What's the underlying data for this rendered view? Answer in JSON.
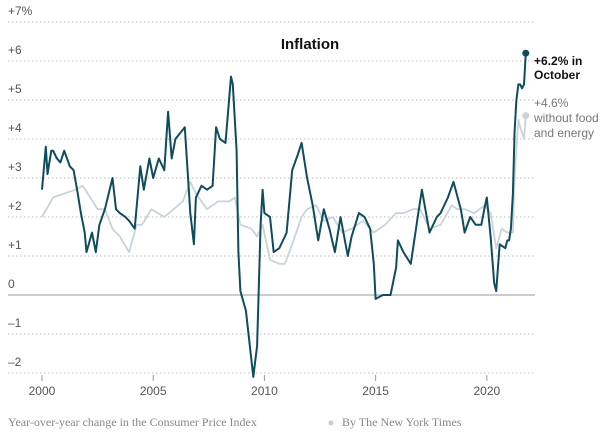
{
  "chart_data": {
    "type": "line",
    "title": "Inflation",
    "xlim": [
      1999.7,
      2022.3
    ],
    "xticks": [
      2000,
      2005,
      2010,
      2015,
      2020
    ],
    "ylim": [
      -2,
      7
    ],
    "yticks": [
      {
        "value": 7,
        "label": "+7%"
      },
      {
        "value": 6,
        "label": "+6"
      },
      {
        "value": 5,
        "label": "+5"
      },
      {
        "value": 4,
        "label": "+4"
      },
      {
        "value": 3,
        "label": "+3"
      },
      {
        "value": 2,
        "label": "+2"
      },
      {
        "value": 1,
        "label": "+1"
      },
      0,
      {
        "value": -1,
        "label": "–1"
      },
      {
        "value": -2,
        "label": "–2"
      }
    ],
    "grid": true,
    "series": [
      {
        "name": "Consumer Price Index",
        "color": "#0f4c5c",
        "x": [
          2000.0,
          2000.17,
          2000.25,
          2000.42,
          2000.5,
          2000.67,
          2000.83,
          2001.0,
          2001.25,
          2001.42,
          2001.58,
          2001.75,
          2001.92,
          2002.0,
          2002.25,
          2002.42,
          2002.58,
          2002.83,
          2003.0,
          2003.17,
          2003.33,
          2003.5,
          2003.75,
          2003.92,
          2004.17,
          2004.42,
          2004.58,
          2004.83,
          2005.0,
          2005.25,
          2005.5,
          2005.67,
          2005.83,
          2006.0,
          2006.42,
          2006.67,
          2006.83,
          2006.92,
          2007.17,
          2007.42,
          2007.67,
          2007.83,
          2008.0,
          2008.25,
          2008.5,
          2008.58,
          2008.75,
          2008.83,
          2008.92,
          2009.17,
          2009.5,
          2009.67,
          2009.83,
          2009.92,
          2010.0,
          2010.25,
          2010.42,
          2010.67,
          2010.92,
          2011.0,
          2011.25,
          2011.5,
          2011.67,
          2011.92,
          2012.17,
          2012.42,
          2012.67,
          2012.92,
          2013.17,
          2013.42,
          2013.75,
          2013.92,
          2014.25,
          2014.5,
          2014.75,
          2014.92,
          2015.0,
          2015.33,
          2015.67,
          2015.92,
          2016.0,
          2016.25,
          2016.58,
          2016.92,
          2017.08,
          2017.42,
          2017.75,
          2017.92,
          2018.25,
          2018.5,
          2018.83,
          2018.92,
          2019.0,
          2019.25,
          2019.5,
          2019.75,
          2019.92,
          2020.0,
          2020.17,
          2020.33,
          2020.42,
          2020.58,
          2020.83,
          2020.92,
          2021.0,
          2021.08,
          2021.17,
          2021.25,
          2021.33,
          2021.42,
          2021.5,
          2021.58,
          2021.67,
          2021.75
        ],
        "values": [
          2.7,
          3.8,
          3.1,
          3.7,
          3.7,
          3.5,
          3.4,
          3.7,
          3.3,
          3.2,
          2.7,
          2.1,
          1.6,
          1.1,
          1.6,
          1.1,
          1.8,
          2.2,
          2.6,
          3.0,
          2.2,
          2.1,
          2.0,
          1.9,
          1.7,
          3.3,
          2.7,
          3.5,
          3.0,
          3.5,
          3.2,
          4.7,
          3.5,
          4.0,
          4.3,
          2.1,
          1.3,
          2.5,
          2.8,
          2.7,
          2.8,
          4.3,
          4.0,
          3.9,
          5.6,
          5.4,
          3.7,
          1.1,
          0.1,
          -0.4,
          -2.1,
          -1.3,
          1.8,
          2.7,
          2.1,
          2.0,
          1.1,
          1.2,
          1.5,
          1.6,
          3.2,
          3.6,
          3.9,
          3.0,
          2.3,
          1.4,
          2.2,
          1.7,
          1.1,
          2.0,
          1.0,
          1.5,
          2.1,
          2.0,
          1.7,
          0.8,
          -0.1,
          0.0,
          0.0,
          0.7,
          1.4,
          1.1,
          0.8,
          2.1,
          2.7,
          1.6,
          2.0,
          2.1,
          2.5,
          2.9,
          2.2,
          1.9,
          1.6,
          2.0,
          1.8,
          1.8,
          2.3,
          2.5,
          1.5,
          0.3,
          0.1,
          1.3,
          1.2,
          1.4,
          1.4,
          1.7,
          2.6,
          4.2,
          5.0,
          5.4,
          5.4,
          5.3,
          5.4,
          6.2
        ]
      },
      {
        "name": "without food and energy",
        "color": "#c8d3dc",
        "x": [
          2000.0,
          2000.5,
          2001.0,
          2001.5,
          2001.83,
          2002.17,
          2002.5,
          2002.83,
          2003.17,
          2003.5,
          2003.92,
          2004.25,
          2004.5,
          2004.92,
          2005.5,
          2005.92,
          2006.33,
          2006.67,
          2006.92,
          2007.42,
          2007.92,
          2008.42,
          2008.67,
          2008.92,
          2009.42,
          2009.67,
          2009.92,
          2010.25,
          2010.67,
          2010.92,
          2011.25,
          2011.67,
          2011.92,
          2012.33,
          2012.67,
          2013.08,
          2013.5,
          2013.92,
          2014.42,
          2014.92,
          2015.42,
          2015.92,
          2016.25,
          2016.67,
          2017.0,
          2017.42,
          2017.92,
          2018.42,
          2018.67,
          2019.0,
          2019.42,
          2019.92,
          2020.17,
          2020.42,
          2020.67,
          2020.92,
          2021.17,
          2021.25,
          2021.42,
          2021.5,
          2021.67,
          2021.75
        ],
        "values": [
          2.0,
          2.5,
          2.6,
          2.7,
          2.8,
          2.5,
          2.2,
          2.2,
          1.7,
          1.5,
          1.1,
          1.8,
          1.8,
          2.2,
          2.0,
          2.2,
          2.4,
          2.9,
          2.6,
          2.2,
          2.4,
          2.4,
          2.5,
          1.8,
          1.7,
          1.5,
          1.8,
          0.9,
          0.8,
          0.8,
          1.3,
          2.0,
          2.2,
          2.3,
          1.9,
          2.0,
          1.6,
          1.7,
          1.9,
          1.6,
          1.8,
          2.1,
          2.1,
          2.2,
          2.2,
          1.7,
          1.8,
          2.3,
          2.2,
          2.2,
          2.1,
          2.3,
          2.1,
          1.2,
          1.7,
          1.6,
          1.6,
          3.0,
          4.5,
          4.3,
          4.0,
          4.6
        ]
      }
    ],
    "annotations": [
      {
        "lines": [
          "+6.2% in",
          "October"
        ]
      },
      {
        "lines": [
          "+4.6%",
          "without food",
          "and energy"
        ]
      }
    ],
    "source": [
      "Year-over-year change in the Consumer Price Index",
      "By The New York Times"
    ]
  }
}
